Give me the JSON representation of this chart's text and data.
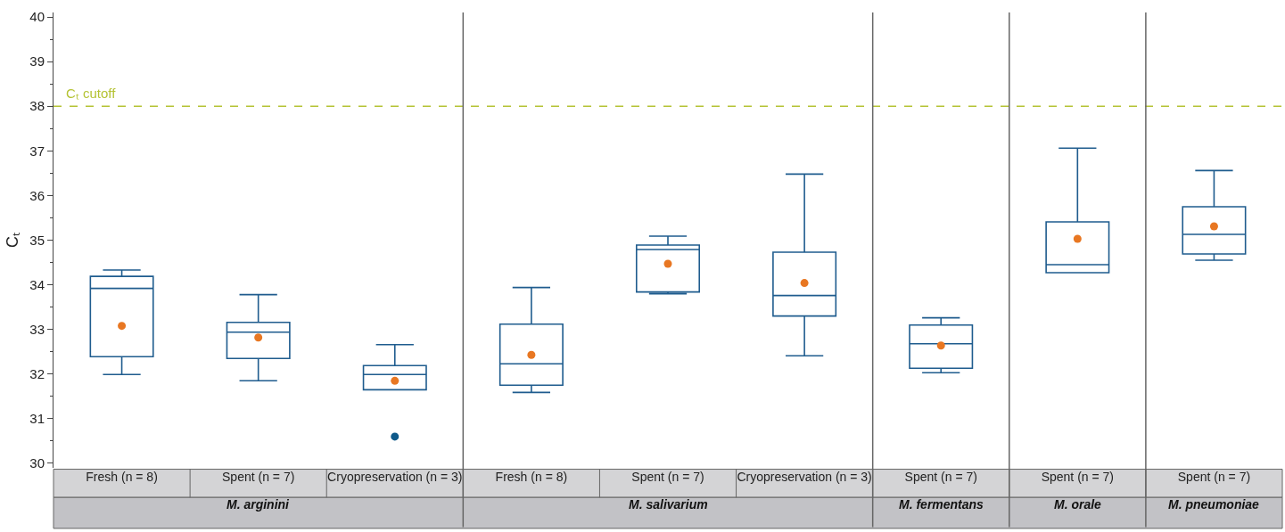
{
  "chart_data": {
    "type": "box",
    "ylabel": "Cₜ",
    "categories": [
      "Fresh (n = 8)",
      "Spent (n = 7)",
      "Cryopreservation (n = 3)",
      "Fresh (n = 8)",
      "Spent (n = 7)",
      "Cryopreservation (n = 3)",
      "Spent (n = 7)",
      "Spent (n = 7)",
      "Spent (n = 7)"
    ],
    "boxes": [
      {
        "low": 31.99,
        "q1": 32.39,
        "median": 33.92,
        "q3": 34.19,
        "high": 34.33,
        "mean": 33.08
      },
      {
        "low": 31.85,
        "q1": 32.35,
        "median": 32.94,
        "q3": 33.16,
        "high": 33.78,
        "mean": 32.82
      },
      {
        "low": 31.65,
        "q1": 31.65,
        "median": 31.99,
        "q3": 32.19,
        "high": 32.66,
        "mean": 31.85,
        "outliers": [
          30.6
        ]
      },
      {
        "low": 31.59,
        "q1": 31.75,
        "median": 32.23,
        "q3": 33.12,
        "high": 33.94,
        "mean": 32.43
      },
      {
        "low": 33.8,
        "q1": 33.84,
        "median": 34.79,
        "q3": 34.89,
        "high": 35.09,
        "mean": 34.47
      },
      {
        "low": 32.41,
        "q1": 33.3,
        "median": 33.76,
        "q3": 34.73,
        "high": 36.48,
        "mean": 34.04
      },
      {
        "low": 32.03,
        "q1": 32.13,
        "median": 32.68,
        "q3": 33.1,
        "high": 33.26,
        "mean": 32.64
      },
      {
        "low": 34.27,
        "q1": 34.27,
        "median": 34.45,
        "q3": 35.41,
        "high": 37.06,
        "mean": 35.03
      },
      {
        "low": 34.55,
        "q1": 34.69,
        "median": 35.13,
        "q3": 35.75,
        "high": 36.56,
        "mean": 35.31
      }
    ],
    "color": "#1f5c8e",
    "ylim": [
      29.9,
      40.1
    ],
    "yticks": [
      30,
      31,
      32,
      33,
      34,
      35,
      36,
      37,
      38,
      39,
      40
    ],
    "ref_lines": [
      {
        "axis": "y",
        "value": 38,
        "label": "Cₜ cutoff",
        "color": "#b5c334",
        "line_style": "dashed"
      }
    ],
    "annotations": [
      "M. arginini",
      "M. salivarium",
      "M. fermentans",
      "M. orale",
      "M. pneumoniae"
    ]
  }
}
